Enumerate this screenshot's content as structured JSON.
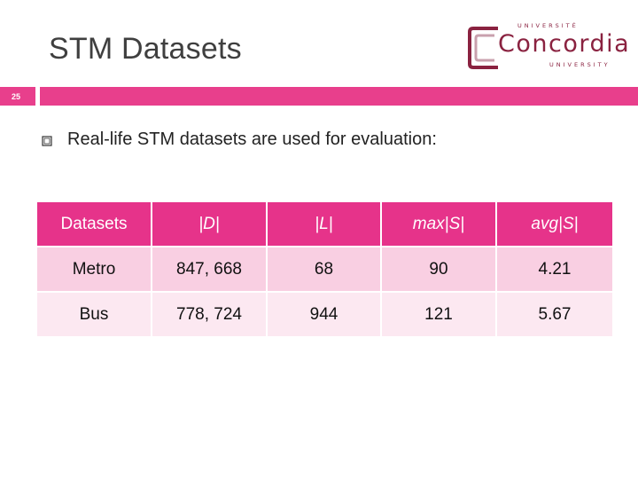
{
  "slide": {
    "title": "STM Datasets",
    "number": "25",
    "bullet": "Real-life STM datasets are used for evaluation:"
  },
  "logo": {
    "top_text": "UNIVERSITÉ",
    "name": "Concordia",
    "bottom_text": "UNIVERSITY",
    "color": "#8a2240"
  },
  "colors": {
    "accent": "#e83f8c",
    "header_bg": "#e6338a",
    "row_odd": "#f9cfe2",
    "row_even": "#fce8f1"
  },
  "table": {
    "headers": [
      "Datasets",
      "|D|",
      "|L|",
      "max|S|",
      "avg|S|"
    ],
    "rows": [
      [
        "Metro",
        "847, 668",
        "68",
        "90",
        "4.21"
      ],
      [
        "Bus",
        "778, 724",
        "944",
        "121",
        "5.67"
      ]
    ]
  }
}
